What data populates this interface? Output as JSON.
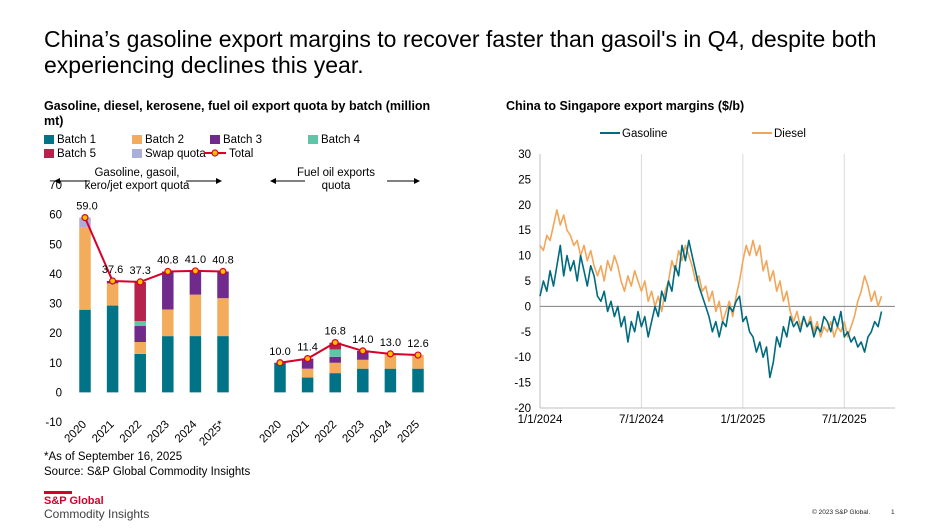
{
  "title": "China’s gasoline export margins to recover faster than gasoil's in Q4, despite both experiencing declines this year.",
  "left_subtitle": "Gasoline, diesel, kerosene, fuel oil export quota by batch (million mt)",
  "right_subtitle": "China to Singapore export margins ($/b)",
  "footnote": "*As of September 16, 2025",
  "source": "Source: S&P Global Commodity Insights",
  "logo_line1": "S&P Global",
  "logo_line2": "Commodity Insights",
  "copyright": "© 2023 S&P Global.",
  "page_number": "1",
  "colors": {
    "batch1": "#007486",
    "batch2": "#F2AC5C",
    "batch3": "#702A8C",
    "batch4": "#5EC6A6",
    "batch5": "#B5224B",
    "swap": "#A9AFD8",
    "total": "#D6002A",
    "gasoline": "#006B7F",
    "diesel": "#F2A65A"
  },
  "chart_data": [
    {
      "type": "bar",
      "stacked": true,
      "title": "Gasoline, diesel, kerosene, fuel oil export quota by batch (million mt)",
      "ylim": [
        -10,
        70
      ],
      "yticks": [
        -10,
        0,
        10,
        20,
        30,
        40,
        50,
        60,
        70
      ],
      "legend": [
        "Batch 1",
        "Batch 2",
        "Batch 3",
        "Batch 4",
        "Batch 5",
        "Swap quota",
        "Total"
      ],
      "series_names": [
        "Batch 1",
        "Batch 2",
        "Batch 3",
        "Batch 4",
        "Batch 5",
        "Swap quota"
      ],
      "group_annotations": [
        {
          "label_lines": [
            "Gasoline, gasoil,",
            "kero/jet export quota"
          ]
        },
        {
          "label_lines": [
            "Fuel oil exports",
            "quota"
          ]
        }
      ],
      "groups": [
        {
          "name": "Gasoline, gasoil, kero/jet export quota",
          "categories": [
            "2020",
            "2021",
            "2022",
            "2023",
            "2024",
            "2025*"
          ],
          "stacks": [
            [
              27.9,
              27.9,
              0,
              0,
              0,
              3.2
            ],
            [
              29.3,
              7.5,
              0.8,
              0,
              0,
              0
            ],
            [
              13.0,
              4.0,
              5.4,
              1.7,
              13.2,
              0
            ],
            [
              18.99,
              9.0,
              12.81,
              0,
              0,
              0
            ],
            [
              19.0,
              14.0,
              8.0,
              0,
              0,
              0
            ],
            [
              19.0,
              12.8,
              9.0,
              0,
              0,
              0
            ]
          ],
          "total": [
            59.0,
            37.6,
            37.3,
            40.8,
            41.0,
            40.8
          ],
          "total_labels": [
            "59.0",
            "37.6",
            "37.3",
            "40.8",
            "41.0",
            "40.8"
          ]
        },
        {
          "name": "Fuel oil exports quota",
          "categories": [
            "2020",
            "2021",
            "2022",
            "2023",
            "2024",
            "2025"
          ],
          "stacks": [
            [
              10.0,
              0,
              0,
              0,
              0,
              0
            ],
            [
              5.0,
              3.0,
              3.4,
              0,
              0,
              0
            ],
            [
              6.5,
              3.5,
              2.0,
              2.5,
              2.3,
              0
            ],
            [
              8.0,
              3.0,
              3.0,
              0,
              0,
              0
            ],
            [
              8.0,
              5.0,
              0,
              0,
              0,
              0
            ],
            [
              8.0,
              4.6,
              0,
              0,
              0,
              0
            ]
          ],
          "total": [
            10.0,
            11.4,
            16.8,
            14.0,
            13.0,
            12.6
          ],
          "total_labels": [
            "10.0",
            "11.4",
            "16.8",
            "14.0",
            "13.0",
            "12.6"
          ]
        }
      ]
    },
    {
      "type": "line",
      "title": "China to Singapore export margins ($/b)",
      "ylim": [
        -20,
        30
      ],
      "yticks": [
        -20,
        -15,
        -10,
        -5,
        0,
        5,
        10,
        15,
        20,
        25,
        30
      ],
      "xlim": [
        0,
        21
      ],
      "xticks": [
        {
          "label": "1/1/2024",
          "x": 0
        },
        {
          "label": "7/1/2024",
          "x": 6
        },
        {
          "label": "1/1/2025",
          "x": 12
        },
        {
          "label": "7/1/2025",
          "x": 18
        }
      ],
      "x_unit": "months since 1/1/2024",
      "series": [
        {
          "name": "Gasoline",
          "points": [
            [
              0,
              2
            ],
            [
              0.2,
              5
            ],
            [
              0.4,
              3
            ],
            [
              0.6,
              7
            ],
            [
              0.8,
              4
            ],
            [
              1.0,
              8
            ],
            [
              1.2,
              12
            ],
            [
              1.4,
              6
            ],
            [
              1.6,
              10
            ],
            [
              1.8,
              7
            ],
            [
              2.0,
              9
            ],
            [
              2.2,
              5
            ],
            [
              2.4,
              10
            ],
            [
              2.6,
              7
            ],
            [
              2.8,
              4
            ],
            [
              3.0,
              8
            ],
            [
              3.2,
              6
            ],
            [
              3.4,
              2
            ],
            [
              3.6,
              1
            ],
            [
              3.8,
              3
            ],
            [
              4.0,
              -1
            ],
            [
              4.2,
              1
            ],
            [
              4.4,
              -2
            ],
            [
              4.6,
              0
            ],
            [
              4.8,
              -4
            ],
            [
              5.0,
              -2
            ],
            [
              5.2,
              -7
            ],
            [
              5.4,
              -3
            ],
            [
              5.6,
              -5
            ],
            [
              5.8,
              -1
            ],
            [
              6.0,
              -4
            ],
            [
              6.2,
              -2
            ],
            [
              6.4,
              -6
            ],
            [
              6.6,
              -3
            ],
            [
              6.8,
              0
            ],
            [
              7.0,
              -2
            ],
            [
              7.2,
              3
            ],
            [
              7.4,
              1
            ],
            [
              7.6,
              5
            ],
            [
              7.8,
              3
            ],
            [
              8.0,
              8
            ],
            [
              8.2,
              6
            ],
            [
              8.4,
              12
            ],
            [
              8.6,
              9
            ],
            [
              8.8,
              13
            ],
            [
              9.0,
              10
            ],
            [
              9.2,
              7
            ],
            [
              9.4,
              4
            ],
            [
              9.6,
              2
            ],
            [
              9.8,
              0
            ],
            [
              10.0,
              -2
            ],
            [
              10.2,
              -5
            ],
            [
              10.4,
              -3
            ],
            [
              10.6,
              -6
            ],
            [
              10.8,
              -3
            ],
            [
              11.0,
              -4
            ],
            [
              11.2,
              0
            ],
            [
              11.4,
              -1
            ],
            [
              11.6,
              1
            ],
            [
              11.8,
              2
            ],
            [
              12.0,
              -3
            ],
            [
              12.2,
              -2
            ],
            [
              12.4,
              -5
            ],
            [
              12.6,
              -6
            ],
            [
              12.8,
              -9
            ],
            [
              13.0,
              -7
            ],
            [
              13.2,
              -10
            ],
            [
              13.4,
              -8
            ],
            [
              13.6,
              -14
            ],
            [
              13.8,
              -11
            ],
            [
              14.0,
              -6
            ],
            [
              14.2,
              -8
            ],
            [
              14.4,
              -4
            ],
            [
              14.6,
              -6
            ],
            [
              14.8,
              -2
            ],
            [
              15.0,
              -4
            ],
            [
              15.2,
              -3
            ],
            [
              15.4,
              -5
            ],
            [
              15.6,
              -2
            ],
            [
              15.8,
              -4
            ],
            [
              16.0,
              -3
            ],
            [
              16.2,
              -6
            ],
            [
              16.4,
              -4
            ],
            [
              16.6,
              -5
            ],
            [
              16.8,
              -2
            ],
            [
              17.0,
              -3
            ],
            [
              17.2,
              -5
            ],
            [
              17.4,
              -2
            ],
            [
              17.6,
              -4
            ],
            [
              17.8,
              -1
            ],
            [
              18.0,
              -6
            ],
            [
              18.2,
              -5
            ],
            [
              18.4,
              -7
            ],
            [
              18.6,
              -6
            ],
            [
              18.8,
              -8
            ],
            [
              19.0,
              -7
            ],
            [
              19.2,
              -9
            ],
            [
              19.4,
              -6
            ],
            [
              19.6,
              -5
            ],
            [
              19.8,
              -3
            ],
            [
              20.0,
              -4
            ],
            [
              20.2,
              -1
            ]
          ]
        },
        {
          "name": "Diesel",
          "points": [
            [
              0,
              12
            ],
            [
              0.2,
              11
            ],
            [
              0.4,
              14
            ],
            [
              0.6,
              13
            ],
            [
              0.8,
              16
            ],
            [
              1.0,
              19
            ],
            [
              1.2,
              16
            ],
            [
              1.4,
              18
            ],
            [
              1.6,
              15
            ],
            [
              1.8,
              14
            ],
            [
              2.0,
              12
            ],
            [
              2.2,
              13
            ],
            [
              2.4,
              10
            ],
            [
              2.6,
              12
            ],
            [
              2.8,
              9
            ],
            [
              3.0,
              11
            ],
            [
              3.2,
              8
            ],
            [
              3.4,
              6
            ],
            [
              3.6,
              8
            ],
            [
              3.8,
              5
            ],
            [
              4.0,
              9
            ],
            [
              4.2,
              7
            ],
            [
              4.4,
              10
            ],
            [
              4.6,
              8
            ],
            [
              4.8,
              5
            ],
            [
              5.0,
              3
            ],
            [
              5.2,
              6
            ],
            [
              5.4,
              4
            ],
            [
              5.6,
              7
            ],
            [
              5.8,
              5
            ],
            [
              6.0,
              3
            ],
            [
              6.2,
              5
            ],
            [
              6.4,
              1
            ],
            [
              6.6,
              3
            ],
            [
              6.8,
              0
            ],
            [
              7.0,
              2
            ],
            [
              7.2,
              -1
            ],
            [
              7.4,
              3
            ],
            [
              7.6,
              5
            ],
            [
              7.8,
              9
            ],
            [
              8.0,
              7
            ],
            [
              8.2,
              11
            ],
            [
              8.4,
              9
            ],
            [
              8.6,
              12
            ],
            [
              8.8,
              10
            ],
            [
              9.0,
              8
            ],
            [
              9.2,
              5
            ],
            [
              9.4,
              6
            ],
            [
              9.6,
              3
            ],
            [
              9.8,
              4
            ],
            [
              10.0,
              1
            ],
            [
              10.2,
              3
            ],
            [
              10.4,
              -1
            ],
            [
              10.6,
              1
            ],
            [
              10.8,
              -3
            ],
            [
              11.0,
              -1
            ],
            [
              11.2,
              1
            ],
            [
              11.4,
              -2
            ],
            [
              11.6,
              2
            ],
            [
              11.8,
              5
            ],
            [
              12.0,
              9
            ],
            [
              12.2,
              12
            ],
            [
              12.4,
              10
            ],
            [
              12.6,
              13
            ],
            [
              12.8,
              10
            ],
            [
              13.0,
              12
            ],
            [
              13.2,
              7
            ],
            [
              13.4,
              9
            ],
            [
              13.6,
              5
            ],
            [
              13.8,
              7
            ],
            [
              14.0,
              3
            ],
            [
              14.2,
              5
            ],
            [
              14.4,
              1
            ],
            [
              14.6,
              3
            ],
            [
              14.8,
              -1
            ],
            [
              15.0,
              -3
            ],
            [
              15.2,
              -1
            ],
            [
              15.4,
              -4
            ],
            [
              15.6,
              -2
            ],
            [
              15.8,
              -4
            ],
            [
              16.0,
              -2
            ],
            [
              16.2,
              -5
            ],
            [
              16.4,
              -3
            ],
            [
              16.6,
              -6
            ],
            [
              16.8,
              -4
            ],
            [
              17.0,
              -5
            ],
            [
              17.2,
              -3
            ],
            [
              17.4,
              -6
            ],
            [
              17.6,
              -4
            ],
            [
              17.8,
              -5
            ],
            [
              18.0,
              -3
            ],
            [
              18.2,
              -6
            ],
            [
              18.4,
              -4
            ],
            [
              18.6,
              -2
            ],
            [
              18.8,
              1
            ],
            [
              19.0,
              3
            ],
            [
              19.2,
              6
            ],
            [
              19.4,
              4
            ],
            [
              19.6,
              1
            ],
            [
              19.8,
              3
            ],
            [
              20.0,
              0
            ],
            [
              20.2,
              2
            ]
          ]
        }
      ]
    }
  ]
}
